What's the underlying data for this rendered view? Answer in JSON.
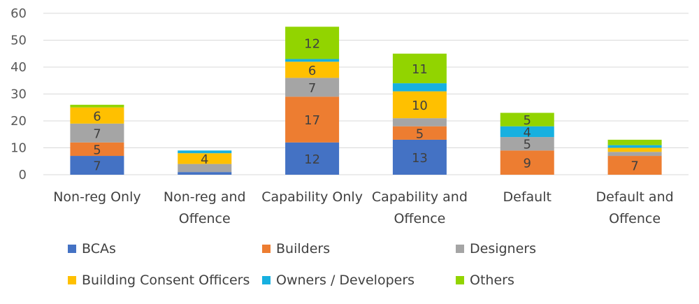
{
  "chart_data": {
    "type": "stacked-bar",
    "title": "",
    "xlabel": "",
    "ylabel": "",
    "ylim": [
      0,
      60
    ],
    "yticks": [
      0,
      10,
      20,
      30,
      40,
      50,
      60
    ],
    "grid": true,
    "legend_position": "bottom",
    "categories": [
      [
        "Non-reg Only"
      ],
      [
        "Non-reg and",
        "Offence"
      ],
      [
        "Capability Only"
      ],
      [
        "Capability and",
        "Offence"
      ],
      [
        "Default"
      ],
      [
        "Default and",
        "Offence"
      ]
    ],
    "series": [
      {
        "name": "BCAs",
        "color": "#4472C4",
        "values": [
          7,
          1,
          12,
          13,
          0,
          0
        ],
        "labels": [
          "7",
          "",
          "12",
          "13",
          "",
          ""
        ]
      },
      {
        "name": "Builders",
        "color": "#ED7D31",
        "values": [
          5,
          0,
          17,
          5,
          9,
          7
        ],
        "labels": [
          "5",
          "",
          "17",
          "5",
          "9",
          "7"
        ]
      },
      {
        "name": "Designers",
        "color": "#A5A5A5",
        "values": [
          7,
          3,
          7,
          3,
          5,
          1.5
        ],
        "labels": [
          "7",
          "",
          "7",
          "",
          "5",
          ""
        ]
      },
      {
        "name": "Building Consent Officers",
        "color": "#FFC000",
        "values": [
          6,
          4,
          6,
          10,
          0,
          1.5
        ],
        "labels": [
          "6",
          "4",
          "6",
          "10",
          "",
          ""
        ]
      },
      {
        "name": "Owners / Developers",
        "color": "#17B0E0",
        "values": [
          0,
          1,
          1,
          3,
          4,
          1
        ],
        "labels": [
          "",
          "",
          "",
          "",
          "4",
          ""
        ]
      },
      {
        "name": "Others",
        "color": "#92D400",
        "values": [
          1,
          0,
          12,
          11,
          5,
          2
        ],
        "labels": [
          "",
          "",
          "12",
          "11",
          "5",
          ""
        ]
      }
    ]
  }
}
